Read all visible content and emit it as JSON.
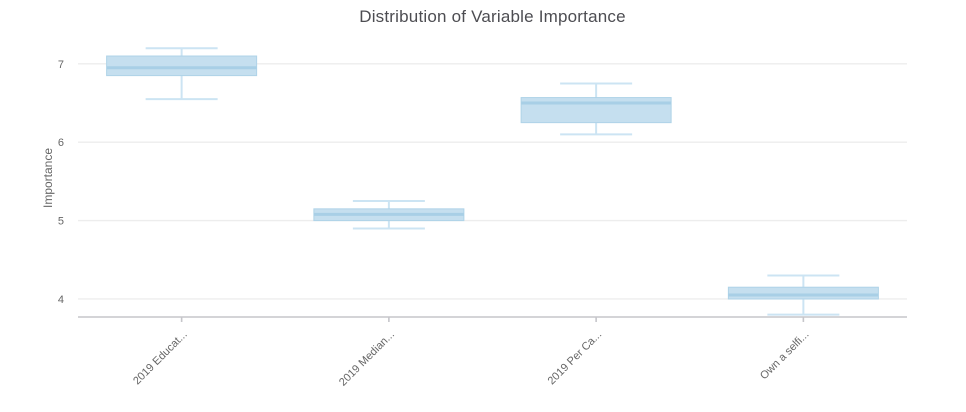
{
  "chart_data": {
    "type": "boxplot",
    "title": "Distribution of Variable Importance",
    "xlabel": "",
    "ylabel": "Importance",
    "categories": [
      "2019 Educat...",
      "2019 Median...",
      "2019 Per Ca...",
      "Own a selfi..."
    ],
    "boxes": [
      {
        "label": "2019 Educat...",
        "min": 6.55,
        "q1": 6.85,
        "median": 6.95,
        "q3": 7.1,
        "max": 7.2
      },
      {
        "label": "2019 Median...",
        "min": 4.9,
        "q1": 5.0,
        "median": 5.08,
        "q3": 5.15,
        "max": 5.25
      },
      {
        "label": "2019 Per Ca...",
        "min": 6.1,
        "q1": 6.25,
        "median": 6.5,
        "q3": 6.57,
        "max": 6.75
      },
      {
        "label": "Own a selfi...",
        "min": 3.8,
        "q1": 4.0,
        "median": 4.05,
        "q3": 4.15,
        "max": 4.3
      }
    ],
    "yticks": [
      4,
      5,
      6,
      7
    ],
    "ylim": [
      3.77,
      7.33
    ],
    "grid": true,
    "legend": false,
    "x_label_rotation": -45
  },
  "colors": {
    "box_fill": "#C5DFEF",
    "box_stroke": "#AFD3E8",
    "median_line": "#A8CFE6",
    "whisker": "#CCE4F3",
    "gridline": "#EDEDED",
    "axis_line": "#C6C6CA",
    "tick_text": "#666666",
    "title_text": "#4D4D52",
    "background": "#FFFFFF"
  }
}
